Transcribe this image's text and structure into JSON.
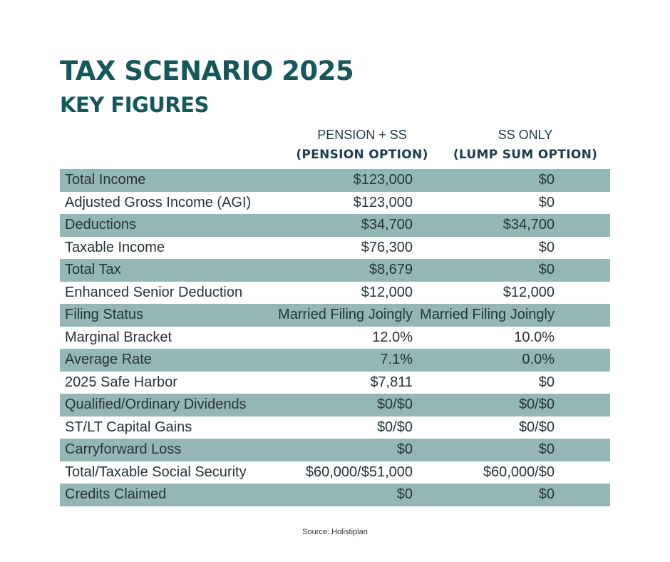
{
  "header": {
    "title": "TAX SCENARIO 2025",
    "subtitle": "KEY FIGURES"
  },
  "columns": [
    {
      "line1": "PENSION + SS",
      "line2": "(PENSION OPTION)"
    },
    {
      "line1": "SS ONLY",
      "line2": "(LUMP SUM OPTION)"
    }
  ],
  "rows": [
    {
      "label": "Total Income",
      "a": "$123,000",
      "b": "$0"
    },
    {
      "label": "Adjusted Gross Income (AGI)",
      "a": "$123,000",
      "b": "$0"
    },
    {
      "label": "Deductions",
      "a": "$34,700",
      "b": "$34,700"
    },
    {
      "label": "Taxable Income",
      "a": "$76,300",
      "b": "$0"
    },
    {
      "label": "Total Tax",
      "a": "$8,679",
      "b": "$0"
    },
    {
      "label": "Enhanced Senior Deduction",
      "a": "$12,000",
      "b": "$12,000"
    },
    {
      "label": "Filing Status",
      "a": "Married Filing Joingly",
      "b": "Married Filing Joingly"
    },
    {
      "label": "Marginal Bracket",
      "a": "12.0%",
      "b": "10.0%"
    },
    {
      "label": "Average Rate",
      "a": "7.1%",
      "b": "0.0%"
    },
    {
      "label": "2025 Safe Harbor",
      "a": "$7,811",
      "b": "$0"
    },
    {
      "label": "Qualified/Ordinary Dividends",
      "a": "$0/$0",
      "b": "$0/$0"
    },
    {
      "label": "ST/LT Capital Gains",
      "a": "$0/$0",
      "b": "$0/$0"
    },
    {
      "label": "Carryforward Loss",
      "a": "$0",
      "b": "$0"
    },
    {
      "label": "Total/Taxable Social Security",
      "a": "$60,000/$51,000",
      "b": "$60,000/$0"
    },
    {
      "label": "Credits Claimed",
      "a": "$0",
      "b": "$0"
    }
  ],
  "source": "Source: Holistiplan",
  "colors": {
    "title": "#14585a",
    "row_shade": "#94b7b5",
    "text": "#26343b"
  }
}
